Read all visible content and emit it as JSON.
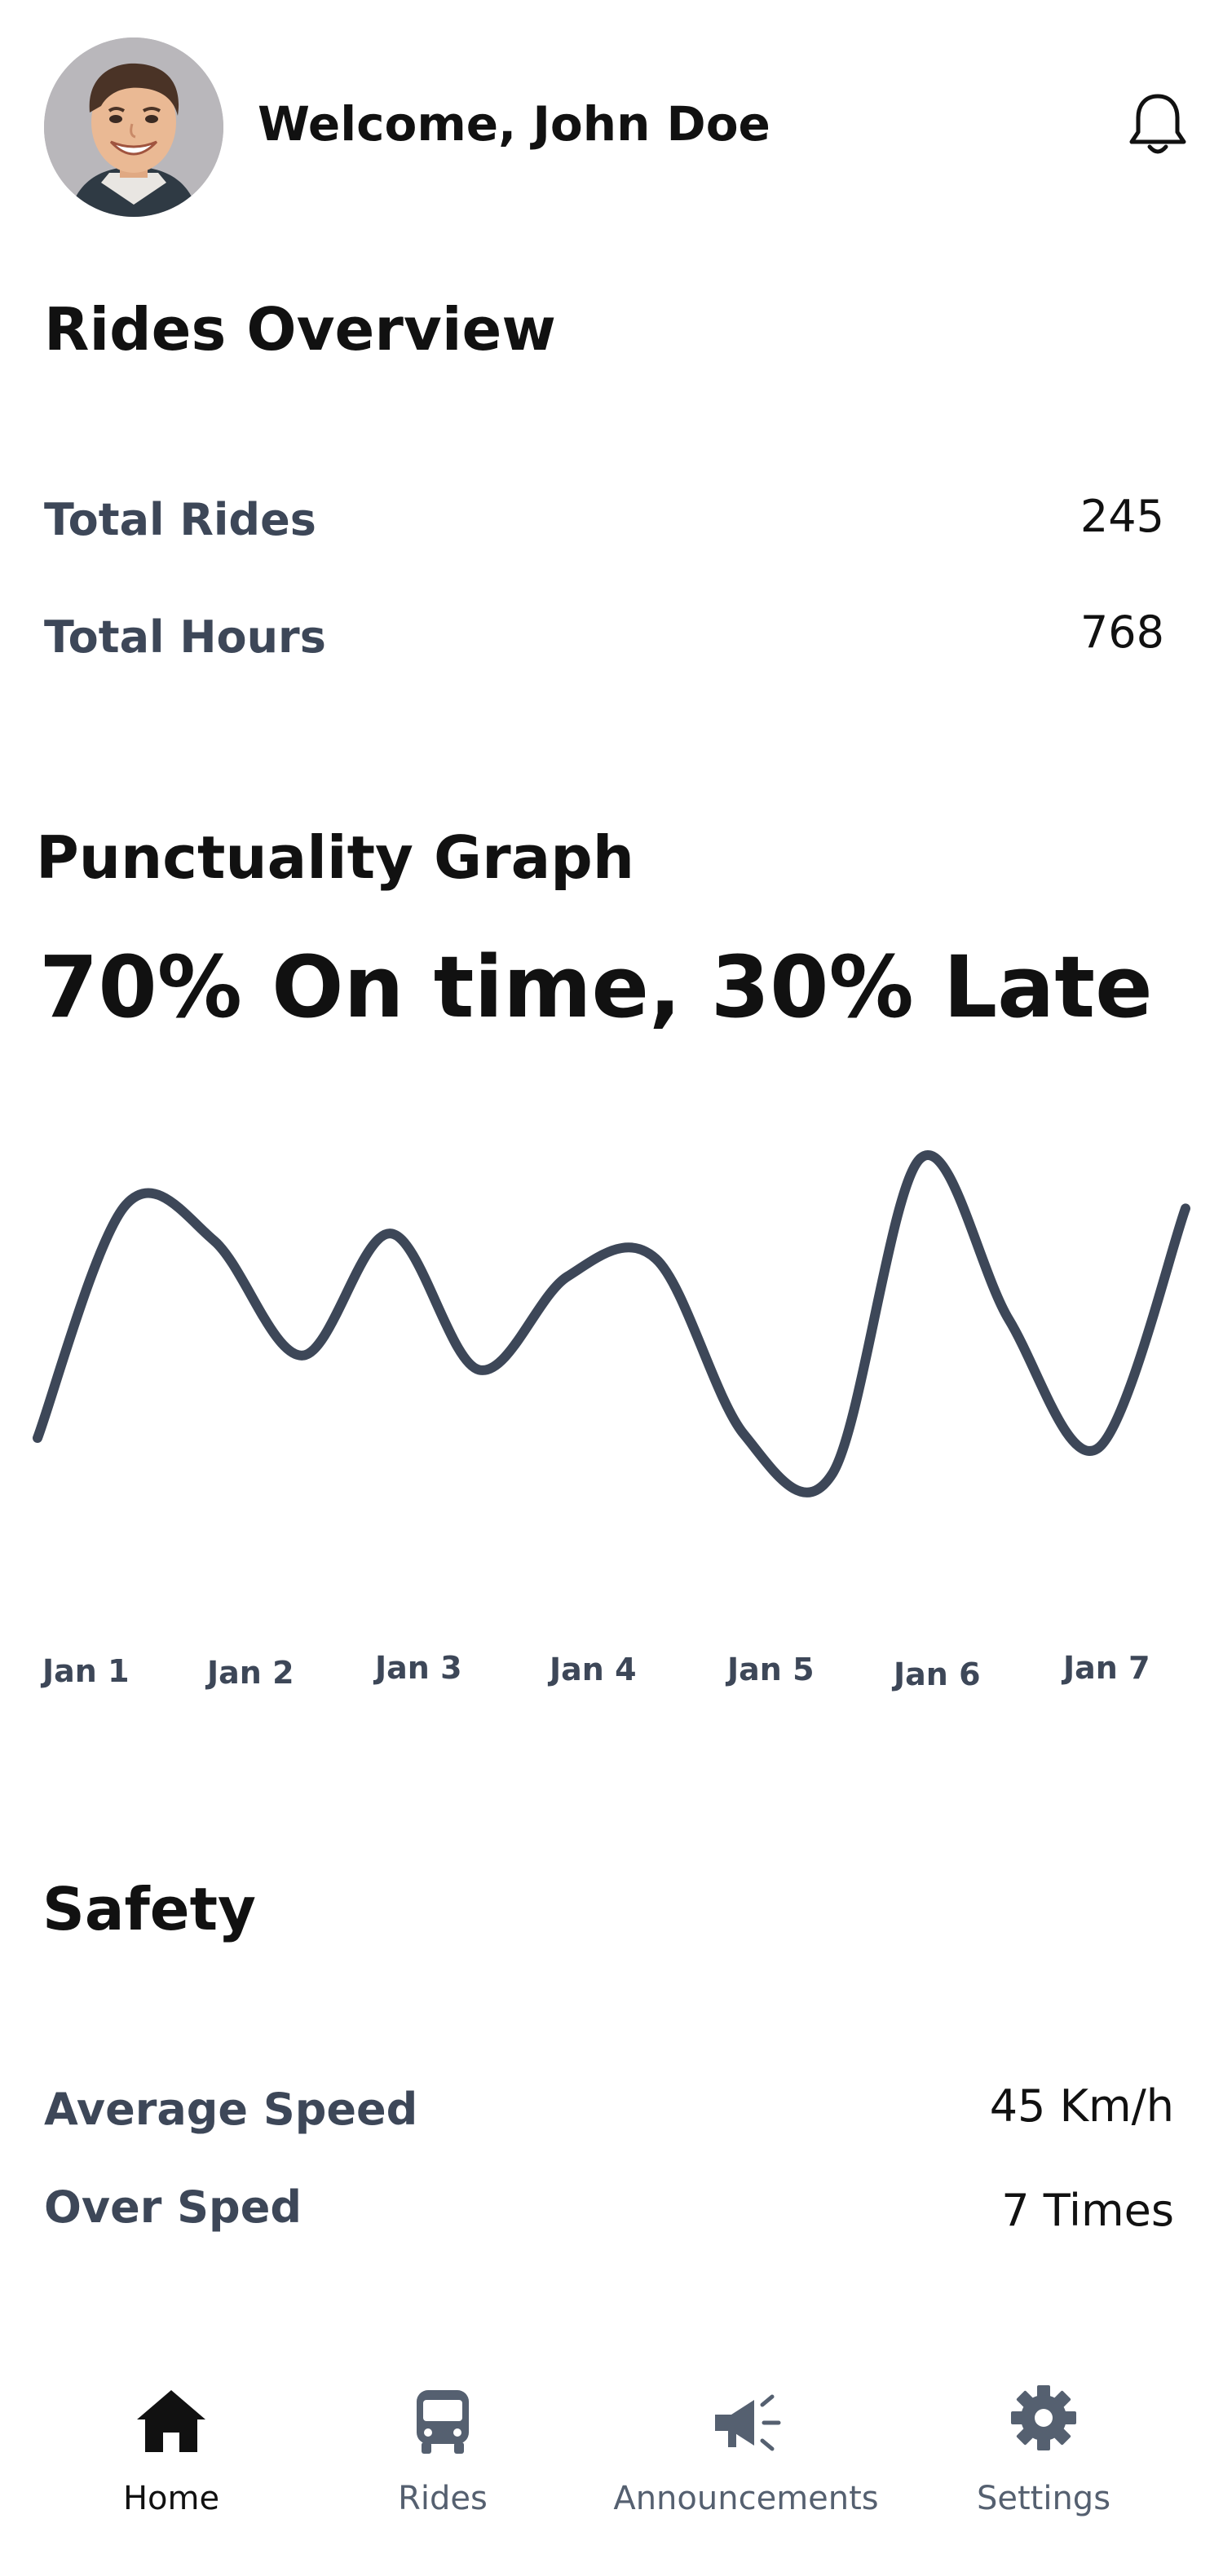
{
  "header": {
    "welcome_text": "Welcome, John Doe",
    "avatar_icon": "user-avatar",
    "notification_icon": "bell-icon"
  },
  "rides_overview": {
    "title": "Rides Overview",
    "stats": [
      {
        "label": "Total Rides",
        "value": "245"
      },
      {
        "label": "Total Hours",
        "value": "768"
      }
    ]
  },
  "punctuality": {
    "title": "Punctuality Graph",
    "summary": "70% On time, 30% Late"
  },
  "chart_data": {
    "type": "line",
    "categories": [
      "Jan 1",
      "Jan 2",
      "Jan 3",
      "Jan 4",
      "Jan 5",
      "Jan 6",
      "Jan 7"
    ],
    "x": [
      0.0,
      0.5,
      1.0,
      1.5,
      2.0,
      2.5,
      3.0,
      3.5,
      4.0,
      4.5,
      5.0,
      5.5,
      6.0,
      6.5
    ],
    "values": [
      0.15,
      0.8,
      0.7,
      0.38,
      0.72,
      0.34,
      0.6,
      0.65,
      0.16,
      0.05,
      0.93,
      0.48,
      0.12,
      0.79
    ],
    "color": "#3d4758",
    "ylim": [
      0,
      1
    ],
    "grid": false,
    "legend": "none"
  },
  "safety": {
    "title": "Safety",
    "stats": [
      {
        "label": "Average Speed",
        "value": "45 Km/h"
      },
      {
        "label": "Over Sped",
        "value": "7 Times"
      }
    ]
  },
  "nav": {
    "items": [
      {
        "label": "Home",
        "icon": "home-icon",
        "active": true
      },
      {
        "label": "Rides",
        "icon": "bus-icon",
        "active": false
      },
      {
        "label": "Announcements",
        "icon": "megaphone-icon",
        "active": false
      },
      {
        "label": "Settings",
        "icon": "gear-icon",
        "active": false
      }
    ],
    "active_color": "#111111",
    "inactive_color": "#556070"
  }
}
